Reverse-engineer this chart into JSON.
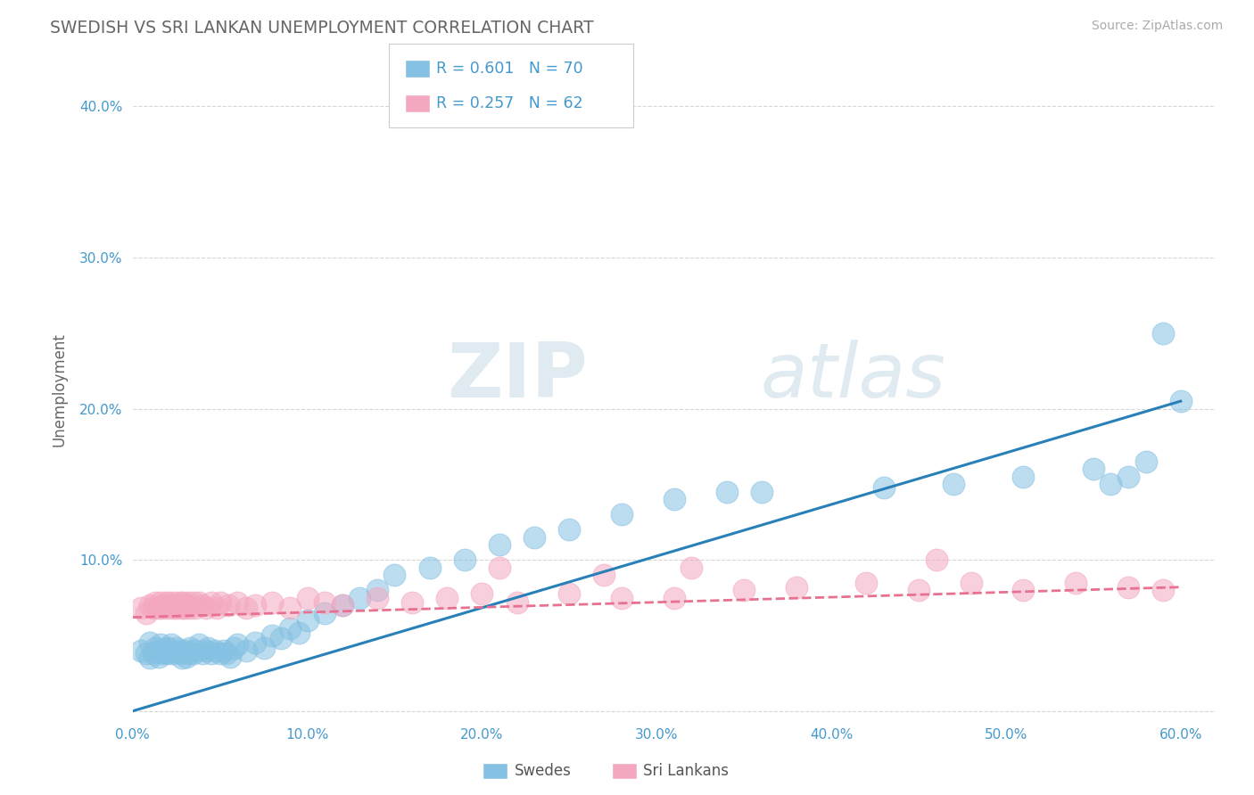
{
  "title": "SWEDISH VS SRI LANKAN UNEMPLOYMENT CORRELATION CHART",
  "source": "Source: ZipAtlas.com",
  "ylabel": "Unemployment",
  "xlim": [
    0.0,
    0.62
  ],
  "ylim": [
    -0.005,
    0.43
  ],
  "xticks": [
    0.0,
    0.1,
    0.2,
    0.3,
    0.4,
    0.5,
    0.6
  ],
  "xtick_labels": [
    "0.0%",
    "10.0%",
    "20.0%",
    "30.0%",
    "40.0%",
    "50.0%",
    "60.0%"
  ],
  "yticks": [
    0.0,
    0.1,
    0.2,
    0.3,
    0.4
  ],
  "ytick_labels": [
    "",
    "10.0%",
    "20.0%",
    "30.0%",
    "40.0%"
  ],
  "swedish_color": "#85c1e2",
  "srilanka_color": "#f4a8c0",
  "swedish_line_color": "#2980b9",
  "srilanka_line_color": "#e87090",
  "background_color": "#ffffff",
  "grid_color": "#cccccc",
  "title_color": "#666666",
  "axis_label_color": "#666666",
  "tick_color": "#4499cc",
  "legend_text_color": "#4499cc",
  "watermark_color": "#d8e8f0",
  "sw_line_x": [
    0.0,
    0.6
  ],
  "sw_line_y": [
    0.0,
    0.205
  ],
  "sl_line_x": [
    0.0,
    0.6
  ],
  "sl_line_y": [
    0.062,
    0.082
  ],
  "swedish_x": [
    0.005,
    0.008,
    0.01,
    0.01,
    0.012,
    0.013,
    0.015,
    0.015,
    0.016,
    0.017,
    0.018,
    0.019,
    0.02,
    0.02,
    0.021,
    0.022,
    0.023,
    0.025,
    0.026,
    0.027,
    0.028,
    0.03,
    0.031,
    0.032,
    0.033,
    0.035,
    0.036,
    0.038,
    0.04,
    0.042,
    0.043,
    0.045,
    0.047,
    0.05,
    0.052,
    0.054,
    0.056,
    0.058,
    0.06,
    0.065,
    0.07,
    0.075,
    0.08,
    0.085,
    0.09,
    0.095,
    0.1,
    0.11,
    0.12,
    0.13,
    0.14,
    0.15,
    0.17,
    0.19,
    0.21,
    0.23,
    0.25,
    0.28,
    0.31,
    0.34,
    0.36,
    0.43,
    0.47,
    0.51,
    0.55,
    0.56,
    0.57,
    0.58,
    0.59,
    0.6
  ],
  "swedish_y": [
    0.04,
    0.038,
    0.035,
    0.045,
    0.038,
    0.042,
    0.036,
    0.04,
    0.044,
    0.038,
    0.041,
    0.039,
    0.038,
    0.042,
    0.04,
    0.044,
    0.038,
    0.042,
    0.04,
    0.038,
    0.035,
    0.04,
    0.036,
    0.038,
    0.042,
    0.038,
    0.04,
    0.044,
    0.038,
    0.04,
    0.042,
    0.038,
    0.04,
    0.038,
    0.04,
    0.038,
    0.036,
    0.042,
    0.044,
    0.04,
    0.045,
    0.042,
    0.05,
    0.048,
    0.055,
    0.052,
    0.06,
    0.065,
    0.07,
    0.075,
    0.08,
    0.09,
    0.095,
    0.1,
    0.11,
    0.115,
    0.12,
    0.13,
    0.14,
    0.145,
    0.145,
    0.148,
    0.15,
    0.155,
    0.16,
    0.15,
    0.155,
    0.165,
    0.25,
    0.205
  ],
  "srilanka_x": [
    0.005,
    0.008,
    0.01,
    0.012,
    0.013,
    0.015,
    0.016,
    0.017,
    0.018,
    0.019,
    0.02,
    0.021,
    0.022,
    0.023,
    0.024,
    0.025,
    0.026,
    0.027,
    0.028,
    0.029,
    0.03,
    0.031,
    0.032,
    0.033,
    0.035,
    0.036,
    0.038,
    0.04,
    0.042,
    0.045,
    0.048,
    0.05,
    0.055,
    0.06,
    0.065,
    0.07,
    0.08,
    0.09,
    0.1,
    0.11,
    0.12,
    0.14,
    0.16,
    0.18,
    0.2,
    0.22,
    0.25,
    0.28,
    0.31,
    0.35,
    0.38,
    0.42,
    0.45,
    0.48,
    0.51,
    0.54,
    0.57,
    0.59,
    0.21,
    0.27,
    0.32,
    0.46
  ],
  "srilanka_y": [
    0.068,
    0.065,
    0.07,
    0.068,
    0.072,
    0.068,
    0.072,
    0.068,
    0.07,
    0.072,
    0.068,
    0.072,
    0.07,
    0.068,
    0.072,
    0.068,
    0.07,
    0.072,
    0.068,
    0.072,
    0.068,
    0.07,
    0.072,
    0.068,
    0.072,
    0.068,
    0.072,
    0.07,
    0.068,
    0.072,
    0.068,
    0.072,
    0.07,
    0.072,
    0.068,
    0.07,
    0.072,
    0.068,
    0.075,
    0.072,
    0.07,
    0.075,
    0.072,
    0.075,
    0.078,
    0.072,
    0.078,
    0.075,
    0.075,
    0.08,
    0.082,
    0.085,
    0.08,
    0.085,
    0.08,
    0.085,
    0.082,
    0.08,
    0.095,
    0.09,
    0.095,
    0.1
  ]
}
